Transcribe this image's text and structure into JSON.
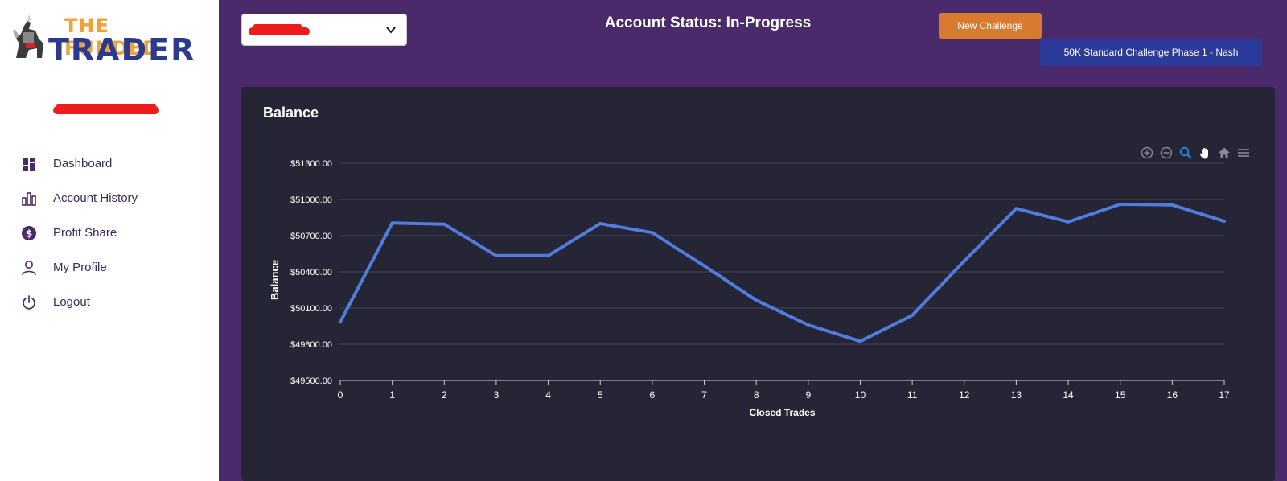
{
  "brand": {
    "line1": "THE FUNDED",
    "line2": "TRADER"
  },
  "sidebar": {
    "items": [
      {
        "label": "Dashboard",
        "icon": "dashboard-icon"
      },
      {
        "label": "Account History",
        "icon": "bar-chart-icon"
      },
      {
        "label": "Profit Share",
        "icon": "dollar-icon"
      },
      {
        "label": "My Profile",
        "icon": "user-icon"
      },
      {
        "label": "Logout",
        "icon": "power-icon"
      }
    ]
  },
  "header": {
    "status_title": "Account Status: In-Progress",
    "new_challenge_label": "New Challenge",
    "challenge_name": "50K Standard Challenge Phase 1 - Nash"
  },
  "colors": {
    "background": "#4a2a6a",
    "panel": "#262536",
    "line": "#4f7ddb",
    "accent_orange": "#d97b2e",
    "badge_blue": "#2c3a9a"
  },
  "chart_data": {
    "type": "line",
    "title": "Balance",
    "xlabel": "Closed Trades",
    "ylabel": "Balance",
    "x": [
      0,
      1,
      2,
      3,
      4,
      5,
      6,
      7,
      8,
      9,
      10,
      11,
      12,
      13,
      14,
      15,
      16,
      17
    ],
    "series": [
      {
        "name": "Balance",
        "values": [
          49985,
          50805,
          50795,
          50535,
          50535,
          50800,
          50725,
          50450,
          50165,
          49960,
          49825,
          50040,
          50490,
          50925,
          50815,
          50960,
          50955,
          50820
        ]
      }
    ],
    "ylim": [
      49500,
      51300
    ],
    "yticks": [
      49500,
      49800,
      50100,
      50400,
      50700,
      51000,
      51300
    ],
    "ytick_labels": [
      "$49500.00",
      "$49800.00",
      "$50100.00",
      "$50400.00",
      "$50700.00",
      "$51000.00",
      "$51300.00"
    ],
    "grid": true
  }
}
